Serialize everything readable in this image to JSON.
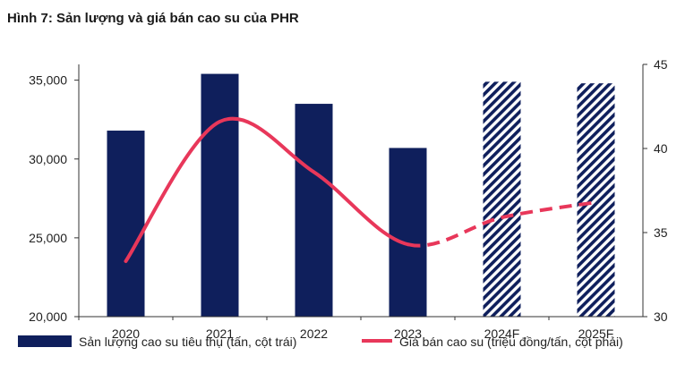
{
  "chart_data": {
    "type": "bar",
    "title": "Hình 7: Sản lượng và giá bán cao su của PHR",
    "categories": [
      "2020",
      "2021",
      "2022",
      "2023",
      "2024F",
      "2025F"
    ],
    "series": [
      {
        "name": "Sản lượng cao su tiêu thụ (tấn, cột trái)",
        "type": "bar",
        "axis": "left",
        "values": [
          31800,
          35400,
          33500,
          30700,
          34900,
          34800
        ],
        "forecast": [
          false,
          false,
          false,
          false,
          true,
          true
        ],
        "color": "#0f1f5c"
      },
      {
        "name": "Giá bán cao su (triệu đồng/tấn, cột phải)",
        "type": "line",
        "axis": "right",
        "values": [
          33.3,
          41.6,
          38.6,
          34.3,
          35.9,
          36.8
        ],
        "forecast": [
          false,
          false,
          false,
          false,
          true,
          true
        ],
        "color": "#e8375a"
      }
    ],
    "y_left": {
      "min": 20000,
      "max": 36000,
      "ticks": [
        "20,000",
        "25,000",
        "30,000",
        "35,000"
      ],
      "tick_values": [
        20000,
        25000,
        30000,
        35000
      ]
    },
    "y_right": {
      "min": 30,
      "max": 45,
      "ticks": [
        "30",
        "35",
        "40",
        "45"
      ],
      "tick_values": [
        30,
        35,
        40,
        45
      ]
    },
    "grid": false,
    "legend_position": "bottom"
  }
}
